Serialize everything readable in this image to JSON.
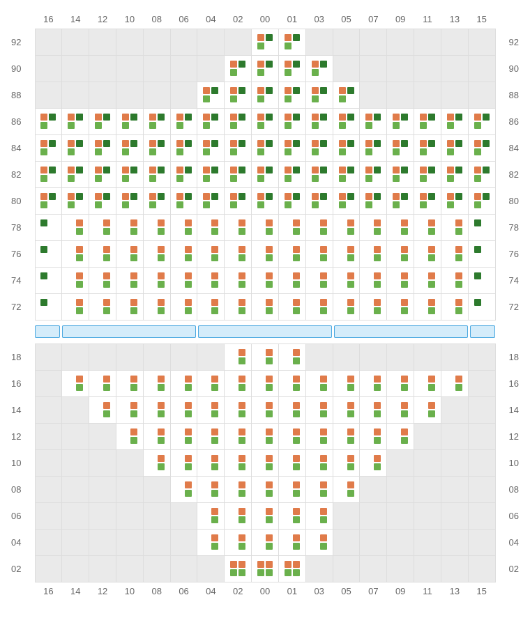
{
  "colors": {
    "orange": "#e07b4a",
    "green": "#6ab04c",
    "darkgreen": "#2d7a2d",
    "empty_bg": "#eaeaea",
    "seat_bg": "#ffffff",
    "grid_border": "#dddddd",
    "sep_border": "#4aa8e0",
    "sep_fill": "#d4ecfa",
    "label_color": "#666666"
  },
  "columns": [
    "16",
    "14",
    "12",
    "10",
    "08",
    "06",
    "04",
    "02",
    "00",
    "01",
    "03",
    "05",
    "07",
    "09",
    "11",
    "13",
    "15"
  ],
  "glyphs": {
    "A": [
      "orange",
      "darkgreen",
      "green",
      null
    ],
    "B": [
      null,
      "orange",
      null,
      "green"
    ],
    "C": [
      "darkgreen",
      null,
      null,
      null
    ],
    "D": [
      "orange",
      "orange",
      "green",
      "green"
    ]
  },
  "separator_segments": [
    1,
    5,
    5,
    5,
    1
  ],
  "upper": {
    "row_labels": [
      "92",
      "90",
      "88",
      "86",
      "84",
      "82",
      "80",
      "78",
      "76",
      "74",
      "72"
    ],
    "cells": [
      [
        null,
        null,
        null,
        null,
        null,
        null,
        null,
        null,
        "A",
        "A",
        null,
        null,
        null,
        null,
        null,
        null,
        null
      ],
      [
        null,
        null,
        null,
        null,
        null,
        null,
        null,
        "A",
        "A",
        "A",
        "A",
        null,
        null,
        null,
        null,
        null,
        null
      ],
      [
        null,
        null,
        null,
        null,
        null,
        null,
        "A",
        "A",
        "A",
        "A",
        "A",
        "A",
        null,
        null,
        null,
        null,
        null
      ],
      [
        "A",
        "A",
        "A",
        "A",
        "A",
        "A",
        "A",
        "A",
        "A",
        "A",
        "A",
        "A",
        "A",
        "A",
        "A",
        "A",
        "A"
      ],
      [
        "A",
        "A",
        "A",
        "A",
        "A",
        "A",
        "A",
        "A",
        "A",
        "A",
        "A",
        "A",
        "A",
        "A",
        "A",
        "A",
        "A"
      ],
      [
        "A",
        "A",
        "A",
        "A",
        "A",
        "A",
        "A",
        "A",
        "A",
        "A",
        "A",
        "A",
        "A",
        "A",
        "A",
        "A",
        "A"
      ],
      [
        "A",
        "A",
        "A",
        "A",
        "A",
        "A",
        "A",
        "A",
        "A",
        "A",
        "A",
        "A",
        "A",
        "A",
        "A",
        "A",
        "A"
      ],
      [
        "C",
        "B",
        "B",
        "B",
        "B",
        "B",
        "B",
        "B",
        "B",
        "B",
        "B",
        "B",
        "B",
        "B",
        "B",
        "B",
        "C"
      ],
      [
        "C",
        "B",
        "B",
        "B",
        "B",
        "B",
        "B",
        "B",
        "B",
        "B",
        "B",
        "B",
        "B",
        "B",
        "B",
        "B",
        "C"
      ],
      [
        "C",
        "B",
        "B",
        "B",
        "B",
        "B",
        "B",
        "B",
        "B",
        "B",
        "B",
        "B",
        "B",
        "B",
        "B",
        "B",
        "C"
      ],
      [
        "C",
        "B",
        "B",
        "B",
        "B",
        "B",
        "B",
        "B",
        "B",
        "B",
        "B",
        "B",
        "B",
        "B",
        "B",
        "B",
        "C"
      ]
    ]
  },
  "lower": {
    "row_labels": [
      "18",
      "16",
      "14",
      "12",
      "10",
      "08",
      "06",
      "04",
      "02"
    ],
    "cells": [
      [
        null,
        null,
        null,
        null,
        null,
        null,
        null,
        "B",
        "B",
        "B",
        null,
        null,
        null,
        null,
        null,
        null,
        null
      ],
      [
        null,
        "B",
        "B",
        "B",
        "B",
        "B",
        "B",
        "B",
        "B",
        "B",
        "B",
        "B",
        "B",
        "B",
        "B",
        "B",
        null
      ],
      [
        null,
        null,
        "B",
        "B",
        "B",
        "B",
        "B",
        "B",
        "B",
        "B",
        "B",
        "B",
        "B",
        "B",
        "B",
        null,
        null
      ],
      [
        null,
        null,
        null,
        "B",
        "B",
        "B",
        "B",
        "B",
        "B",
        "B",
        "B",
        "B",
        "B",
        "B",
        null,
        null,
        null
      ],
      [
        null,
        null,
        null,
        null,
        "B",
        "B",
        "B",
        "B",
        "B",
        "B",
        "B",
        "B",
        "B",
        null,
        null,
        null,
        null
      ],
      [
        null,
        null,
        null,
        null,
        null,
        "B",
        "B",
        "B",
        "B",
        "B",
        "B",
        "B",
        null,
        null,
        null,
        null,
        null
      ],
      [
        null,
        null,
        null,
        null,
        null,
        null,
        "B",
        "B",
        "B",
        "B",
        "B",
        null,
        null,
        null,
        null,
        null,
        null
      ],
      [
        null,
        null,
        null,
        null,
        null,
        null,
        "B",
        "B",
        "B",
        "B",
        "B",
        null,
        null,
        null,
        null,
        null,
        null
      ],
      [
        null,
        null,
        null,
        null,
        null,
        null,
        null,
        "D",
        "D",
        "D",
        null,
        null,
        null,
        null,
        null,
        null,
        null
      ]
    ]
  }
}
